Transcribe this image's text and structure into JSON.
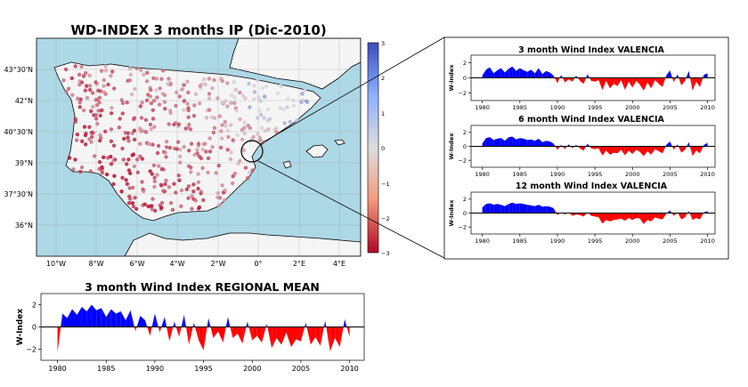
{
  "map": {
    "title": "WD-INDEX 3 months IP (Dic-2010)",
    "lon_ticks": [
      "10°W",
      "8°W",
      "6°W",
      "4°W",
      "2°W",
      "0°",
      "2°E",
      "4°E"
    ],
    "lat_ticks": [
      "43°30'N",
      "42°N",
      "40°30'N",
      "39°N",
      "37°30'N",
      "36°N"
    ],
    "colorbar_ticks": [
      "3",
      "2",
      "1",
      "0",
      "−1",
      "−2",
      "−3"
    ],
    "colors": {
      "sea": "#add8e6",
      "land": "#f5f5f5",
      "positive": "#3a5fcd",
      "negative": "#c0362c"
    }
  },
  "chart_data": [
    {
      "type": "area",
      "title": "3 month Wind Index VALENCIA",
      "ylabel": "W-Index",
      "xlim": [
        1978.5,
        2011
      ],
      "ylim": [
        -3,
        3
      ],
      "yticks": [
        -2,
        0,
        2
      ],
      "xticks": [
        "1980",
        "1985",
        "1990",
        "1995",
        "2000",
        "2005",
        "2010"
      ],
      "colors": {
        "positive": "#0000ff",
        "negative": "#ff0000"
      },
      "x": [
        1980.0,
        1980.5,
        1981.0,
        1981.5,
        1982.0,
        1982.5,
        1983.0,
        1983.5,
        1984.0,
        1984.5,
        1985.0,
        1985.5,
        1986.0,
        1986.5,
        1987.0,
        1987.5,
        1988.0,
        1988.5,
        1989.0,
        1989.5,
        1990.0,
        1990.5,
        1991.0,
        1991.5,
        1992.0,
        1992.5,
        1993.0,
        1993.5,
        1994.0,
        1994.5,
        1995.0,
        1995.5,
        1996.0,
        1996.5,
        1997.0,
        1997.5,
        1998.0,
        1998.5,
        1999.0,
        1999.5,
        2000.0,
        2000.5,
        2001.0,
        2001.5,
        2002.0,
        2002.5,
        2003.0,
        2003.5,
        2004.0,
        2004.5,
        2005.0,
        2005.5,
        2006.0,
        2006.5,
        2007.0,
        2007.5,
        2008.0,
        2008.5,
        2009.0,
        2009.5,
        2010.0
      ],
      "values": [
        0.3,
        1.1,
        1.4,
        0.6,
        1.0,
        1.3,
        0.7,
        1.2,
        1.5,
        0.9,
        1.3,
        1.0,
        0.8,
        1.1,
        0.6,
        1.3,
        0.5,
        0.9,
        0.7,
        0.3,
        -0.7,
        0.4,
        -0.6,
        -0.2,
        -0.5,
        0.3,
        -0.4,
        -0.8,
        0.5,
        -0.4,
        -0.5,
        -0.3,
        -1.6,
        -0.4,
        -1.4,
        -0.8,
        -1.1,
        -0.3,
        -1.6,
        -0.5,
        -1.3,
        -0.4,
        -0.9,
        -1.7,
        -0.6,
        -1.4,
        -0.3,
        -0.8,
        -1.2,
        0.3,
        1.0,
        -0.6,
        0.5,
        -1.0,
        -0.4,
        0.9,
        -1.7,
        -0.5,
        -1.2,
        0.4,
        0.6
      ]
    },
    {
      "type": "area",
      "title": "6 month Wind Index VALENCIA",
      "ylabel": "W-Index",
      "xlim": [
        1978.5,
        2011
      ],
      "ylim": [
        -3,
        3
      ],
      "yticks": [
        -2,
        0,
        2
      ],
      "xticks": [
        "1980",
        "1985",
        "1990",
        "1995",
        "2000",
        "2005",
        "2010"
      ],
      "colors": {
        "positive": "#0000ff",
        "negative": "#ff0000"
      },
      "x": [
        1980.0,
        1980.5,
        1981.0,
        1981.5,
        1982.0,
        1982.5,
        1983.0,
        1983.5,
        1984.0,
        1984.5,
        1985.0,
        1985.5,
        1986.0,
        1986.5,
        1987.0,
        1987.5,
        1988.0,
        1988.5,
        1989.0,
        1989.5,
        1990.0,
        1990.5,
        1991.0,
        1991.5,
        1992.0,
        1992.5,
        1993.0,
        1993.5,
        1994.0,
        1994.5,
        1995.0,
        1995.5,
        1996.0,
        1996.5,
        1997.0,
        1997.5,
        1998.0,
        1998.5,
        1999.0,
        1999.5,
        2000.0,
        2000.5,
        2001.0,
        2001.5,
        2002.0,
        2002.5,
        2003.0,
        2003.5,
        2004.0,
        2004.5,
        2005.0,
        2005.5,
        2006.0,
        2006.5,
        2007.0,
        2007.5,
        2008.0,
        2008.5,
        2009.0,
        2009.5,
        2010.0
      ],
      "values": [
        0.4,
        1.2,
        1.3,
        0.9,
        1.1,
        1.2,
        0.8,
        1.3,
        1.4,
        1.0,
        1.2,
        1.1,
        0.9,
        1.0,
        0.8,
        1.1,
        0.6,
        0.8,
        0.7,
        0.4,
        -0.5,
        0.2,
        -0.4,
        0.3,
        -0.3,
        0.2,
        -0.3,
        -0.6,
        0.4,
        -0.3,
        -0.4,
        -0.3,
        -1.3,
        -0.6,
        -1.2,
        -0.9,
        -1.0,
        -0.5,
        -1.3,
        -0.6,
        -1.1,
        -0.5,
        -0.8,
        -1.4,
        -0.7,
        -1.2,
        -0.4,
        -0.7,
        -1.0,
        0.2,
        0.7,
        -0.5,
        0.3,
        -0.9,
        -0.5,
        0.6,
        -1.4,
        -0.6,
        -1.0,
        0.2,
        0.5
      ]
    },
    {
      "type": "area",
      "title": "12 month Wind Index VALENCIA",
      "ylabel": "W-Index",
      "xlim": [
        1978.5,
        2011
      ],
      "ylim": [
        -3,
        3
      ],
      "yticks": [
        -2,
        0,
        2
      ],
      "xticks": [
        "1980",
        "1985",
        "1990",
        "1995",
        "2000",
        "2005",
        "2010"
      ],
      "colors": {
        "positive": "#0000ff",
        "negative": "#ff0000"
      },
      "x": [
        1980.0,
        1980.5,
        1981.0,
        1981.5,
        1982.0,
        1982.5,
        1983.0,
        1983.5,
        1984.0,
        1984.5,
        1985.0,
        1985.5,
        1986.0,
        1986.5,
        1987.0,
        1987.5,
        1988.0,
        1988.5,
        1989.0,
        1989.5,
        1990.0,
        1990.5,
        1991.0,
        1991.5,
        1992.0,
        1992.5,
        1993.0,
        1993.5,
        1994.0,
        1994.5,
        1995.0,
        1995.5,
        1996.0,
        1996.5,
        1997.0,
        1997.5,
        1998.0,
        1998.5,
        1999.0,
        1999.5,
        2000.0,
        2000.5,
        2001.0,
        2001.5,
        2002.0,
        2002.5,
        2003.0,
        2003.5,
        2004.0,
        2004.5,
        2005.0,
        2005.5,
        2006.0,
        2006.5,
        2007.0,
        2007.5,
        2008.0,
        2008.5,
        2009.0,
        2009.5,
        2010.0
      ],
      "values": [
        0.8,
        1.3,
        1.4,
        1.2,
        1.3,
        1.2,
        1.0,
        1.3,
        1.5,
        1.3,
        1.4,
        1.3,
        1.2,
        1.1,
        1.0,
        1.2,
        0.9,
        1.0,
        0.9,
        0.7,
        -0.3,
        0.1,
        -0.2,
        0.1,
        -0.4,
        -0.2,
        -0.3,
        -0.5,
        0.1,
        -0.4,
        -0.5,
        -0.6,
        -1.5,
        -1.0,
        -1.2,
        -1.0,
        -0.9,
        -0.8,
        -1.1,
        -0.7,
        -1.0,
        -0.7,
        -0.8,
        -1.6,
        -1.0,
        -1.2,
        -0.6,
        -0.8,
        -0.9,
        -0.1,
        0.4,
        -0.4,
        0.1,
        -0.9,
        -0.6,
        0.3,
        -1.0,
        -0.7,
        -0.9,
        0.1,
        0.3
      ]
    },
    {
      "type": "area",
      "title": "3 month Wind Index REGIONAL MEAN",
      "ylabel": "W-Index",
      "xlim": [
        1978.3,
        2011.5
      ],
      "ylim": [
        -3,
        3
      ],
      "yticks": [
        -2,
        0,
        2
      ],
      "xticks": [
        "1980",
        "1985",
        "1990",
        "1995",
        "2000",
        "2005",
        "2010"
      ],
      "colors": {
        "positive": "#0000ff",
        "negative": "#ff0000"
      },
      "x": [
        1980.0,
        1980.5,
        1981.0,
        1981.5,
        1982.0,
        1982.5,
        1983.0,
        1983.5,
        1984.0,
        1984.5,
        1985.0,
        1985.5,
        1986.0,
        1986.5,
        1987.0,
        1987.5,
        1988.0,
        1988.5,
        1989.0,
        1989.5,
        1990.0,
        1990.5,
        1991.0,
        1991.5,
        1992.0,
        1992.5,
        1993.0,
        1993.5,
        1994.0,
        1994.5,
        1995.0,
        1995.5,
        1996.0,
        1996.5,
        1997.0,
        1997.5,
        1998.0,
        1998.5,
        1999.0,
        1999.5,
        2000.0,
        2000.5,
        2001.0,
        2001.5,
        2002.0,
        2002.5,
        2003.0,
        2003.5,
        2004.0,
        2004.5,
        2005.0,
        2005.5,
        2006.0,
        2006.5,
        2007.0,
        2007.5,
        2008.0,
        2008.5,
        2009.0,
        2009.5,
        2010.0
      ],
      "values": [
        -2.3,
        1.2,
        0.8,
        1.6,
        1.1,
        1.8,
        1.4,
        2.0,
        1.5,
        1.7,
        0.9,
        1.6,
        1.2,
        1.4,
        0.6,
        1.5,
        -0.4,
        1.0,
        0.6,
        -0.8,
        1.2,
        -0.5,
        0.9,
        -1.3,
        0.5,
        -0.9,
        1.1,
        -1.6,
        0.4,
        -1.2,
        -2.1,
        0.8,
        -1.0,
        -0.4,
        -1.4,
        0.9,
        -1.0,
        -0.6,
        -1.5,
        0.5,
        -1.2,
        -0.8,
        -1.4,
        0.3,
        -1.9,
        -1.0,
        -1.6,
        -0.5,
        -1.8,
        -1.1,
        -1.3,
        0.4,
        -1.6,
        -0.9,
        -1.7,
        0.6,
        -2.2,
        -1.0,
        -1.8,
        0.7,
        -0.9
      ]
    }
  ]
}
